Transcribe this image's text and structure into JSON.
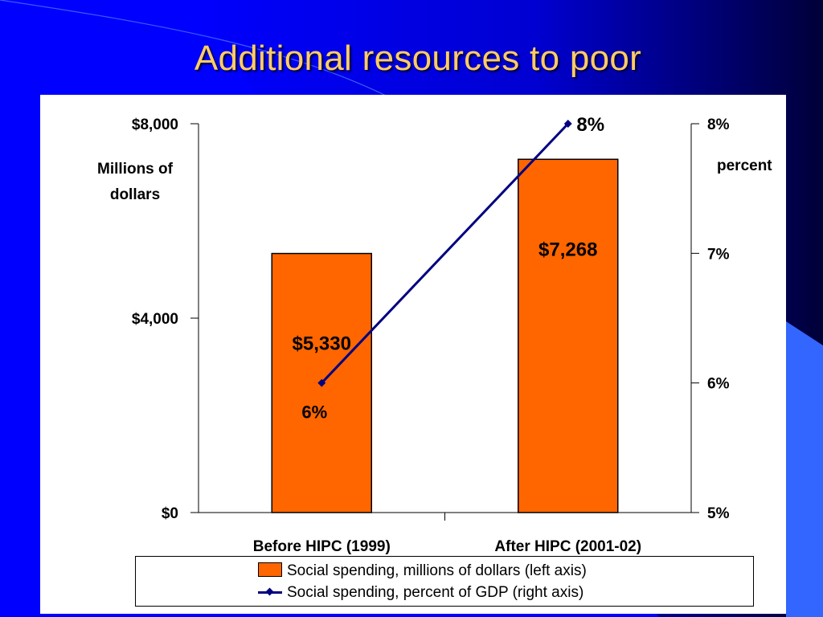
{
  "slide": {
    "title": "Additional resources to poor"
  },
  "colors": {
    "background": "#0000ff",
    "title": "#ffcc66",
    "bar": "#ff6600",
    "line": "#000080"
  },
  "chart_data": {
    "type": "bar",
    "categories": [
      "Before HIPC (1999)",
      "After HIPC (2001-02)"
    ],
    "series": [
      {
        "name": "Social spending, millions of dollars (left axis)",
        "type": "bar",
        "axis": "left",
        "values": [
          5330,
          7268
        ],
        "data_labels": [
          "$5,330",
          "$7,268"
        ]
      },
      {
        "name": "Social spending, percent of GDP (right axis)",
        "type": "line",
        "axis": "right",
        "values": [
          6,
          8
        ],
        "data_labels": [
          "6%",
          "8%"
        ]
      }
    ],
    "y_left": {
      "label_line1": "Millions of",
      "label_line2": "dollars",
      "lim": [
        0,
        8000
      ],
      "ticks": [
        0,
        4000,
        8000
      ],
      "tick_labels": [
        "$0",
        "$4,000",
        "$8,000"
      ]
    },
    "y_right": {
      "label": "percent",
      "lim": [
        5,
        8
      ],
      "ticks": [
        5,
        6,
        7,
        8
      ],
      "tick_labels": [
        "5%",
        "6%",
        "7%",
        "8%"
      ]
    },
    "grid": false,
    "legend_position": "bottom"
  },
  "legend": {
    "bar_label": "Social spending, millions of dollars (left axis)",
    "line_label": "Social spending, percent of GDP (right axis)"
  }
}
